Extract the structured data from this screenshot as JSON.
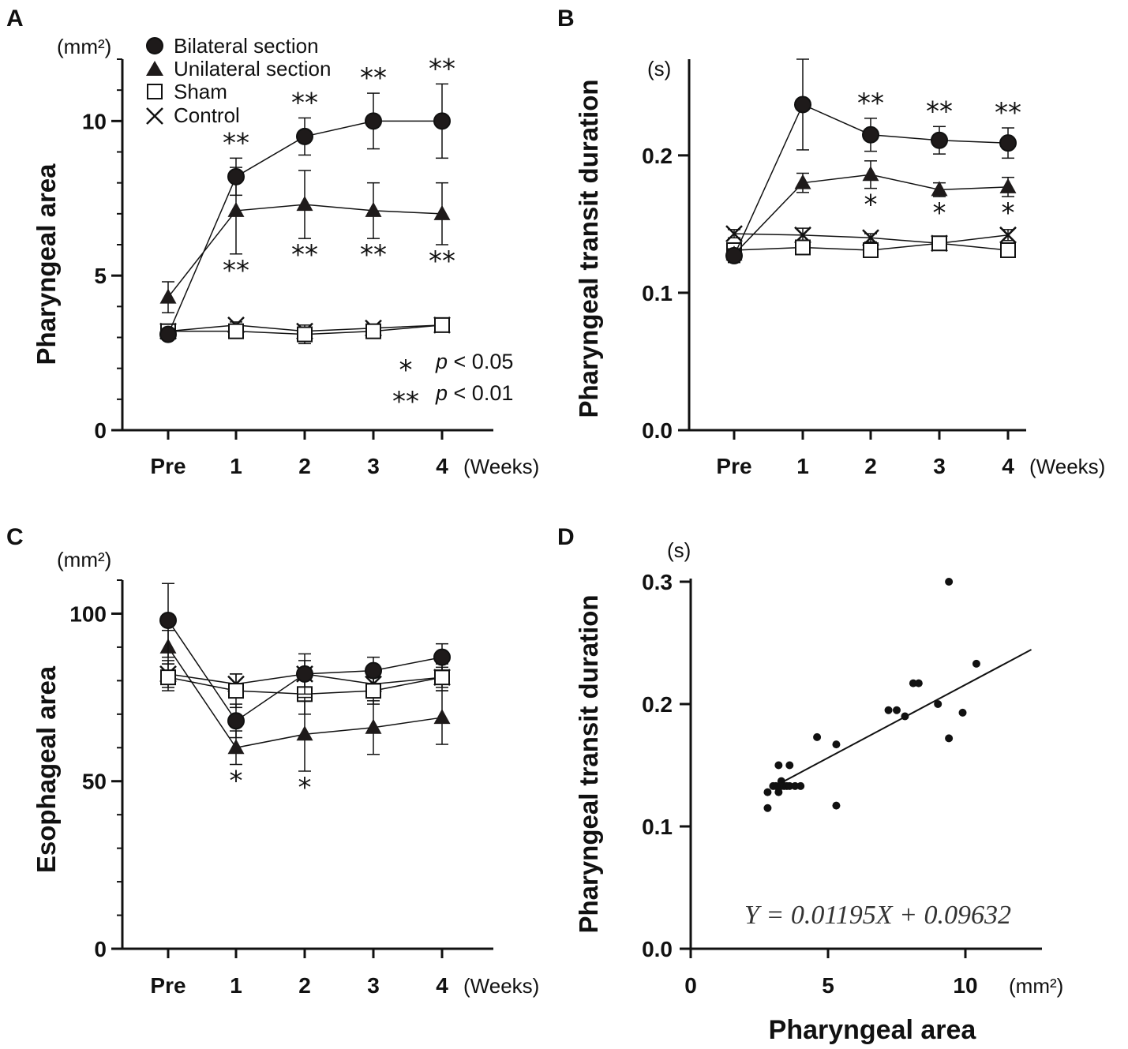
{
  "colors": {
    "ink": "#111111",
    "marker_fill": "#1e1a1a",
    "open_fill": "#ffffff"
  },
  "shared": {
    "week_categories": [
      "Pre",
      "1",
      "2",
      "3",
      "4"
    ],
    "weeks_unit": "(Weeks)"
  },
  "legend": {
    "items": [
      {
        "label": "Bilateral section",
        "marker": "circle"
      },
      {
        "label": "Unilateral section",
        "marker": "triangle"
      },
      {
        "label": "Sham",
        "marker": "square"
      },
      {
        "label": "Control",
        "marker": "cross"
      }
    ],
    "significance": [
      {
        "symbol": "*",
        "p_label": "p",
        "text": " < 0.05"
      },
      {
        "symbol": "**",
        "p_label": "p",
        "text": " < 0.01"
      }
    ]
  },
  "chart_data": [
    {
      "panel": "A",
      "type": "line",
      "ylabel": "Pharyngeal area",
      "unit": "(mm²)",
      "ylim": [
        0,
        12
      ],
      "yticks": [
        0,
        5,
        10
      ],
      "ytick_labels": [
        "0",
        "5",
        "10"
      ],
      "minor_step": 1,
      "categories": [
        "Pre",
        "1",
        "2",
        "3",
        "4"
      ],
      "series": [
        {
          "name": "Bilateral section",
          "marker": "circle",
          "values": [
            3.1,
            8.2,
            9.5,
            10.0,
            10.0
          ],
          "err": [
            0.1,
            0.6,
            0.6,
            0.9,
            1.2
          ],
          "sig": [
            {
              "i": 1,
              "text": "**",
              "pos": "above"
            },
            {
              "i": 2,
              "text": "**",
              "pos": "above"
            },
            {
              "i": 3,
              "text": "**",
              "pos": "above"
            },
            {
              "i": 4,
              "text": "**",
              "pos": "above"
            }
          ]
        },
        {
          "name": "Unilateral section",
          "marker": "triangle",
          "values": [
            4.3,
            7.1,
            7.3,
            7.1,
            7.0
          ],
          "err": [
            0.5,
            1.4,
            1.1,
            0.9,
            1.0
          ],
          "sig": [
            {
              "i": 1,
              "text": "**",
              "pos": "below"
            },
            {
              "i": 2,
              "text": "**",
              "pos": "below"
            },
            {
              "i": 3,
              "text": "**",
              "pos": "below"
            },
            {
              "i": 4,
              "text": "**",
              "pos": "below"
            }
          ]
        },
        {
          "name": "Sham",
          "marker": "square",
          "values": [
            3.2,
            3.2,
            3.1,
            3.2,
            3.4
          ],
          "err": [
            0.2,
            0.2,
            0.3,
            0.2,
            0.2
          ],
          "sig": []
        },
        {
          "name": "Control",
          "marker": "cross",
          "values": [
            3.2,
            3.4,
            3.2,
            3.3,
            3.4
          ],
          "err": [
            0.1,
            0.1,
            0.1,
            0.1,
            0.1
          ],
          "sig": []
        }
      ]
    },
    {
      "panel": "B",
      "type": "line",
      "ylabel": "Pharyngeal transit duration",
      "unit": "(s)",
      "ylim": [
        0,
        0.27
      ],
      "yticks": [
        0,
        0.1,
        0.2
      ],
      "ytick_labels": [
        "0.0",
        "0.1",
        "0.2"
      ],
      "minor_step": 0,
      "categories": [
        "Pre",
        "1",
        "2",
        "3",
        "4"
      ],
      "series": [
        {
          "name": "Bilateral section",
          "marker": "circle",
          "values": [
            0.127,
            0.237,
            0.215,
            0.211,
            0.209
          ],
          "err": [
            0.005,
            0.033,
            0.012,
            0.01,
            0.011
          ],
          "sig": [
            {
              "i": 2,
              "text": "**",
              "pos": "above"
            },
            {
              "i": 3,
              "text": "**",
              "pos": "above"
            },
            {
              "i": 4,
              "text": "**",
              "pos": "above"
            }
          ]
        },
        {
          "name": "Unilateral section",
          "marker": "triangle",
          "values": [
            0.128,
            0.18,
            0.186,
            0.175,
            0.177
          ],
          "err": [
            0.004,
            0.007,
            0.01,
            0.005,
            0.007
          ],
          "sig": [
            {
              "i": 2,
              "text": "*",
              "pos": "below"
            },
            {
              "i": 3,
              "text": "*",
              "pos": "below"
            },
            {
              "i": 4,
              "text": "*",
              "pos": "below"
            }
          ]
        },
        {
          "name": "Sham",
          "marker": "square",
          "values": [
            0.131,
            0.133,
            0.131,
            0.136,
            0.131
          ],
          "err": [
            0.004,
            0.004,
            0.004,
            0.004,
            0.004
          ],
          "sig": []
        },
        {
          "name": "Control",
          "marker": "cross",
          "values": [
            0.143,
            0.142,
            0.14,
            0.136,
            0.142
          ],
          "err": [
            0.003,
            0.005,
            0.003,
            0.003,
            0.004
          ],
          "sig": []
        }
      ]
    },
    {
      "panel": "C",
      "type": "line",
      "ylabel": "Esophageal area",
      "unit": "(mm²)",
      "ylim": [
        0,
        110
      ],
      "yticks": [
        0,
        50,
        100
      ],
      "ytick_labels": [
        "0",
        "50",
        "100"
      ],
      "minor_step": 10,
      "categories": [
        "Pre",
        "1",
        "2",
        "3",
        "4"
      ],
      "series": [
        {
          "name": "Bilateral section",
          "marker": "circle",
          "values": [
            98,
            68,
            82,
            83,
            87
          ],
          "err": [
            11,
            5,
            6,
            4,
            4
          ],
          "sig": []
        },
        {
          "name": "Unilateral section",
          "marker": "triangle",
          "values": [
            90,
            60,
            64,
            66,
            69
          ],
          "err": [
            5,
            5,
            11,
            8,
            8
          ],
          "sig": [
            {
              "i": 1,
              "text": "*",
              "pos": "below"
            },
            {
              "i": 2,
              "text": "*",
              "pos": "below"
            }
          ]
        },
        {
          "name": "Sham",
          "marker": "square",
          "values": [
            81,
            77,
            76,
            77,
            81
          ],
          "err": [
            4,
            5,
            6,
            4,
            4
          ],
          "sig": []
        },
        {
          "name": "Control",
          "marker": "cross",
          "values": [
            82,
            79,
            82,
            79,
            81
          ],
          "err": [
            4,
            3,
            4,
            3,
            3
          ],
          "sig": []
        }
      ]
    },
    {
      "panel": "D",
      "type": "scatter",
      "xlabel": "Pharyngeal area",
      "x_unit": "(mm²)",
      "ylabel": "Pharyngeal transit duration",
      "y_unit": "(s)",
      "xlim": [
        0,
        12.5
      ],
      "ylim": [
        0,
        0.3
      ],
      "xticks": [
        0,
        5,
        10
      ],
      "xtick_labels": [
        "0",
        "5",
        "10"
      ],
      "yticks": [
        0,
        0.1,
        0.2,
        0.3
      ],
      "ytick_labels": [
        "0.0",
        "0.1",
        "0.2",
        "0.3"
      ],
      "points": [
        [
          2.8,
          0.115
        ],
        [
          2.8,
          0.128
        ],
        [
          3.0,
          0.133
        ],
        [
          3.1,
          0.133
        ],
        [
          3.2,
          0.128
        ],
        [
          3.2,
          0.15
        ],
        [
          3.3,
          0.137
        ],
        [
          3.3,
          0.133
        ],
        [
          3.4,
          0.133
        ],
        [
          3.5,
          0.133
        ],
        [
          3.6,
          0.15
        ],
        [
          3.6,
          0.133
        ],
        [
          3.8,
          0.133
        ],
        [
          4.0,
          0.133
        ],
        [
          4.6,
          0.173
        ],
        [
          5.3,
          0.167
        ],
        [
          5.3,
          0.117
        ],
        [
          7.2,
          0.195
        ],
        [
          7.5,
          0.195
        ],
        [
          7.8,
          0.19
        ],
        [
          8.1,
          0.217
        ],
        [
          8.3,
          0.217
        ],
        [
          9.0,
          0.2
        ],
        [
          9.4,
          0.3
        ],
        [
          9.4,
          0.172
        ],
        [
          9.9,
          0.193
        ],
        [
          10.4,
          0.233
        ]
      ],
      "fit": {
        "slope": 0.01195,
        "intercept": 0.09632,
        "x_range": [
          3.2,
          12.4
        ]
      },
      "equation": "Y = 0.01195X + 0.09632"
    }
  ]
}
